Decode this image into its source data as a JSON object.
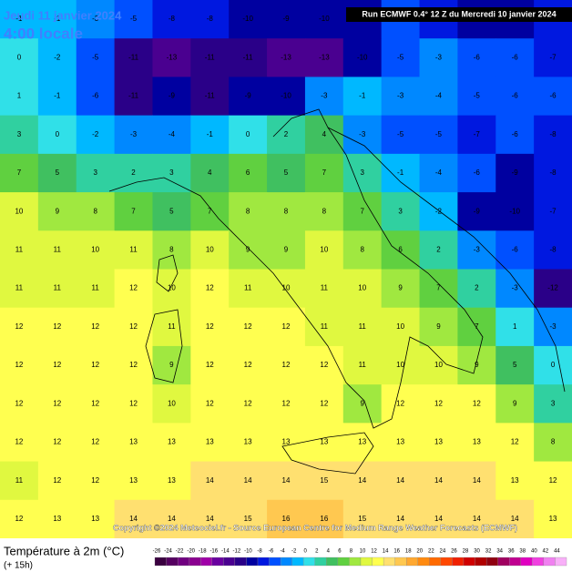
{
  "header": {
    "date": "Jeudi 11 janvier 2024",
    "time": "4:00 locale",
    "run": "Run ECMWF 0.4° 12 Z du Mercredi 10 janvier 2024"
  },
  "copyright": "Copyright ©2024 Meteociel.fr - Source European Centre for Medium Range Weather Forecasts (ECMWF)",
  "legend": {
    "title": "Température à 2m (°C)",
    "lead": "(+ 15h)",
    "ticks": [
      -26,
      -24,
      -22,
      -20,
      -18,
      -16,
      -14,
      -12,
      -10,
      -8,
      -6,
      -4,
      -2,
      0,
      2,
      4,
      6,
      8,
      10,
      12,
      14,
      16,
      18,
      20,
      22,
      24,
      26,
      28,
      30,
      32,
      34,
      36,
      38,
      40,
      42,
      44
    ],
    "colors": [
      "#3a0040",
      "#550060",
      "#700080",
      "#8a0090",
      "#a000a8",
      "#6a00a0",
      "#4a0090",
      "#2a0088",
      "#0000a0",
      "#0018e0",
      "#0050ff",
      "#0088ff",
      "#00b8ff",
      "#30e0e8",
      "#30d0a0",
      "#40c060",
      "#60d040",
      "#a0e840",
      "#e0f840",
      "#ffff50",
      "#ffe070",
      "#ffc850",
      "#ffa830",
      "#ff8a10",
      "#ff6a00",
      "#ff4800",
      "#f02000",
      "#d00000",
      "#b00000",
      "#900010",
      "#a00060",
      "#c00090",
      "#e000c0",
      "#f040e0",
      "#f080f0",
      "#f8b0f8"
    ]
  },
  "grid": [
    [
      -1,
      -1,
      -3,
      -5,
      -8,
      -8,
      -10,
      -9,
      -10,
      -9,
      -6,
      -8,
      -10,
      -9,
      -8
    ],
    [
      0,
      -2,
      -5,
      -11,
      -13,
      -11,
      -11,
      -13,
      -13,
      -10,
      -5,
      -3,
      -6,
      -6,
      -7
    ],
    [
      1,
      -1,
      -6,
      -11,
      -9,
      -11,
      -9,
      -10,
      -3,
      -1,
      -3,
      -4,
      -5,
      -6,
      -6
    ],
    [
      3,
      0,
      -2,
      -3,
      -4,
      -1,
      0,
      2,
      4,
      -3,
      -5,
      -5,
      -7,
      -6,
      -8
    ],
    [
      7,
      5,
      3,
      2,
      3,
      4,
      6,
      5,
      7,
      3,
      -1,
      -4,
      -6,
      -9,
      -8
    ],
    [
      10,
      9,
      8,
      7,
      5,
      7,
      8,
      8,
      8,
      7,
      3,
      -2,
      -9,
      -10,
      -7
    ],
    [
      11,
      11,
      10,
      11,
      8,
      10,
      9,
      9,
      10,
      8,
      6,
      2,
      -3,
      -6,
      -8
    ],
    [
      11,
      11,
      11,
      12,
      10,
      12,
      11,
      10,
      11,
      10,
      9,
      7,
      2,
      -3,
      -12
    ],
    [
      12,
      12,
      12,
      12,
      11,
      12,
      12,
      12,
      11,
      11,
      10,
      9,
      7,
      1,
      -3
    ],
    [
      12,
      12,
      12,
      12,
      9,
      12,
      12,
      12,
      12,
      11,
      10,
      10,
      9,
      5,
      0
    ],
    [
      12,
      12,
      12,
      12,
      10,
      12,
      12,
      12,
      12,
      9,
      12,
      12,
      12,
      9,
      3
    ],
    [
      12,
      12,
      12,
      13,
      13,
      13,
      13,
      13,
      13,
      13,
      13,
      13,
      13,
      12,
      8
    ],
    [
      11,
      12,
      12,
      13,
      13,
      14,
      14,
      14,
      15,
      14,
      14,
      14,
      14,
      13,
      12
    ],
    [
      12,
      13,
      13,
      14,
      14,
      14,
      15,
      16,
      16,
      15,
      14,
      14,
      14,
      14,
      13
    ]
  ]
}
